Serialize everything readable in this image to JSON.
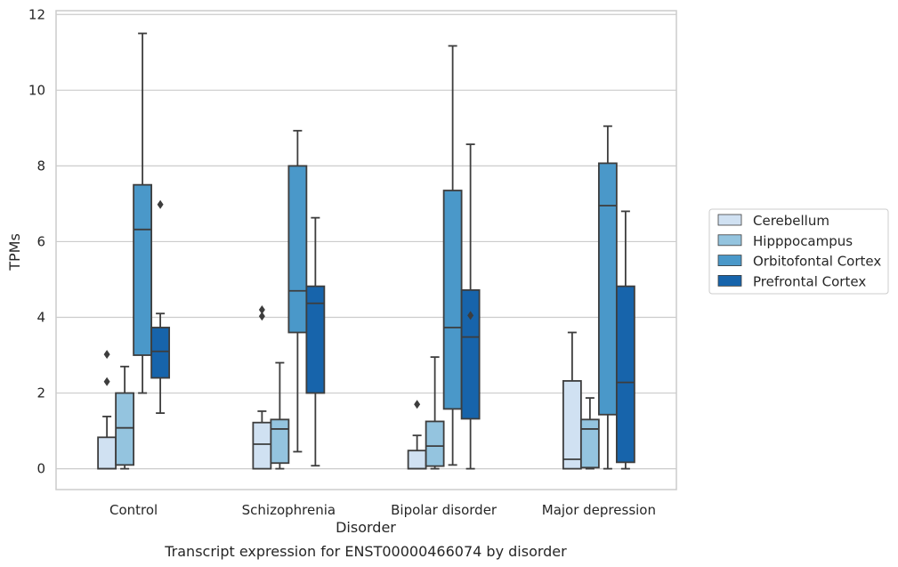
{
  "chart_data": {
    "type": "box",
    "xlabel": "Disorder",
    "ylabel": "TPMs",
    "caption": "Transcript expression for ENST00000466074 by disorder",
    "ylim": [
      -0.55,
      12.1
    ],
    "yticks": [
      0,
      2,
      4,
      6,
      8,
      10,
      12
    ],
    "grid": "horizontal",
    "legend_position": "right",
    "categories": [
      "Control",
      "Schizophrenia",
      "Bipolar disorder",
      "Major depression"
    ],
    "series": [
      {
        "name": "Cerebellum",
        "color": "#d0e1f2",
        "boxes": [
          {
            "min": 0.0,
            "q1": 0.0,
            "median": 0.0,
            "q3": 0.83,
            "max": 1.38,
            "outliers": [
              2.3,
              3.02
            ]
          },
          {
            "min": 0.0,
            "q1": 0.0,
            "median": 0.65,
            "q3": 1.22,
            "max": 1.52,
            "outliers": [
              4.03,
              4.2
            ]
          },
          {
            "min": 0.0,
            "q1": 0.0,
            "median": 0.0,
            "q3": 0.48,
            "max": 0.88,
            "outliers": [
              1.7
            ]
          },
          {
            "min": 0.0,
            "q1": 0.0,
            "median": 0.25,
            "q3": 2.32,
            "max": 3.6,
            "outliers": []
          }
        ]
      },
      {
        "name": "Hipppocampus",
        "color": "#94c4df",
        "boxes": [
          {
            "min": 0.0,
            "q1": 0.1,
            "median": 1.08,
            "q3": 2.0,
            "max": 2.7,
            "outliers": []
          },
          {
            "min": 0.0,
            "q1": 0.15,
            "median": 1.05,
            "q3": 1.3,
            "max": 2.8,
            "outliers": []
          },
          {
            "min": 0.0,
            "q1": 0.07,
            "median": 0.6,
            "q3": 1.25,
            "max": 2.95,
            "outliers": []
          },
          {
            "min": 0.0,
            "q1": 0.03,
            "median": 1.05,
            "q3": 1.3,
            "max": 1.87,
            "outliers": []
          }
        ]
      },
      {
        "name": "Orbitofontal Cortex",
        "color": "#4a98c9",
        "boxes": [
          {
            "min": 2.0,
            "q1": 3.0,
            "median": 6.32,
            "q3": 7.5,
            "max": 11.5,
            "outliers": []
          },
          {
            "min": 0.45,
            "q1": 3.6,
            "median": 4.7,
            "q3": 8.0,
            "max": 8.93,
            "outliers": []
          },
          {
            "min": 0.1,
            "q1": 1.58,
            "median": 3.73,
            "q3": 7.35,
            "max": 11.17,
            "outliers": []
          },
          {
            "min": 0.0,
            "q1": 1.43,
            "median": 6.95,
            "q3": 8.07,
            "max": 9.05,
            "outliers": []
          }
        ]
      },
      {
        "name": "Prefrontal Cortex",
        "color": "#1764ab",
        "boxes": [
          {
            "min": 1.47,
            "q1": 2.4,
            "median": 3.1,
            "q3": 3.73,
            "max": 4.1,
            "outliers": [
              6.98
            ]
          },
          {
            "min": 0.08,
            "q1": 2.0,
            "median": 4.37,
            "q3": 4.82,
            "max": 6.63,
            "outliers": []
          },
          {
            "min": 0.0,
            "q1": 1.32,
            "median": 3.48,
            "q3": 4.72,
            "max": 8.57,
            "outliers": [
              4.05
            ]
          },
          {
            "min": 0.0,
            "q1": 0.17,
            "median": 2.28,
            "q3": 4.82,
            "max": 6.8,
            "outliers": []
          }
        ]
      }
    ]
  }
}
